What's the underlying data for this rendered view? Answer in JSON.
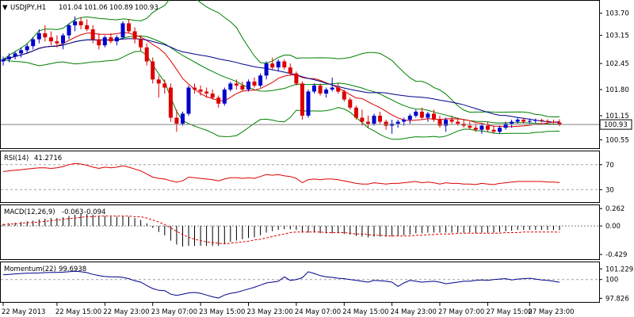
{
  "chart_data": [
    {
      "type": "candlestick",
      "panel": "price",
      "title": "USDJPY,H1",
      "ohlc_readout": [
        "101.04",
        "101.06",
        "100.89",
        "100.93"
      ],
      "current_price": 100.93,
      "ylim": [
        100.4,
        103.95
      ],
      "y_ticks": [
        "103.70",
        "103.15",
        "102.45",
        "101.80",
        "101.15",
        "100.55"
      ],
      "y_tick_values": [
        103.7,
        103.15,
        102.45,
        101.8,
        101.15,
        100.55
      ],
      "indicators": [
        "SMA (red)",
        "SMA (blue)",
        "Bollinger Bands (green)"
      ],
      "up_color": "#0000cc",
      "down_color": "#dd0000",
      "candles": [
        [
          102.5,
          102.62,
          102.4,
          102.55
        ],
        [
          102.55,
          102.7,
          102.48,
          102.62
        ],
        [
          102.62,
          102.75,
          102.55,
          102.7
        ],
        [
          102.7,
          102.85,
          102.6,
          102.78
        ],
        [
          102.78,
          102.95,
          102.7,
          102.88
        ],
        [
          102.88,
          103.1,
          102.8,
          103.05
        ],
        [
          103.05,
          103.3,
          102.95,
          103.2
        ],
        [
          103.2,
          103.4,
          103.0,
          103.1
        ],
        [
          103.1,
          103.25,
          102.9,
          103.0
        ],
        [
          103.0,
          103.15,
          102.85,
          102.95
        ],
        [
          102.95,
          103.2,
          102.8,
          103.15
        ],
        [
          103.15,
          103.45,
          103.05,
          103.4
        ],
        [
          103.4,
          103.62,
          103.25,
          103.5
        ],
        [
          103.5,
          103.6,
          103.3,
          103.4
        ],
        [
          103.4,
          103.55,
          103.25,
          103.3
        ],
        [
          103.3,
          103.4,
          102.95,
          103.05
        ],
        [
          103.05,
          103.2,
          102.8,
          102.9
        ],
        [
          102.9,
          103.15,
          102.85,
          103.1
        ],
        [
          103.1,
          103.2,
          102.95,
          103.0
        ],
        [
          103.0,
          103.15,
          102.9,
          103.1
        ],
        [
          103.1,
          103.5,
          103.05,
          103.45
        ],
        [
          103.45,
          103.55,
          103.2,
          103.25
        ],
        [
          103.25,
          103.35,
          102.95,
          103.05
        ],
        [
          103.05,
          103.15,
          102.75,
          102.85
        ],
        [
          102.85,
          102.95,
          102.4,
          102.5
        ],
        [
          102.5,
          102.6,
          101.95,
          102.05
        ],
        [
          102.05,
          102.15,
          101.6,
          101.95
        ],
        [
          101.95,
          102.05,
          101.7,
          101.85
        ],
        [
          101.85,
          101.95,
          101.0,
          101.1
        ],
        [
          101.1,
          101.3,
          100.75,
          100.95
        ],
        [
          100.95,
          101.25,
          100.9,
          101.2
        ],
        [
          101.2,
          101.9,
          101.15,
          101.85
        ],
        [
          101.85,
          101.95,
          101.7,
          101.8
        ],
        [
          101.8,
          101.9,
          101.65,
          101.75
        ],
        [
          101.75,
          101.85,
          101.6,
          101.7
        ],
        [
          101.7,
          101.8,
          101.55,
          101.6
        ],
        [
          101.6,
          101.65,
          101.35,
          101.45
        ],
        [
          101.45,
          101.85,
          101.4,
          101.8
        ],
        [
          101.8,
          102.0,
          101.75,
          101.95
        ],
        [
          101.95,
          102.05,
          101.8,
          101.9
        ],
        [
          101.9,
          102.0,
          101.75,
          101.8
        ],
        [
          101.8,
          102.05,
          101.75,
          102.0
        ],
        [
          102.0,
          102.1,
          101.85,
          101.9
        ],
        [
          101.9,
          102.2,
          101.85,
          102.15
        ],
        [
          102.15,
          102.5,
          102.05,
          102.45
        ],
        [
          102.45,
          102.6,
          102.3,
          102.35
        ],
        [
          102.35,
          102.55,
          102.25,
          102.5
        ],
        [
          102.5,
          102.55,
          102.3,
          102.35
        ],
        [
          102.35,
          102.45,
          102.15,
          102.2
        ],
        [
          102.2,
          102.25,
          101.9,
          101.95
        ],
        [
          101.95,
          102.0,
          101.05,
          101.15
        ],
        [
          101.15,
          101.8,
          101.1,
          101.75
        ],
        [
          101.75,
          101.95,
          101.7,
          101.9
        ],
        [
          101.9,
          101.95,
          101.65,
          101.7
        ],
        [
          101.7,
          101.85,
          101.6,
          101.8
        ],
        [
          101.8,
          102.1,
          101.75,
          101.85
        ],
        [
          101.85,
          101.95,
          101.7,
          101.75
        ],
        [
          101.75,
          101.8,
          101.5,
          101.55
        ],
        [
          101.55,
          101.6,
          101.3,
          101.35
        ],
        [
          101.35,
          101.4,
          101.05,
          101.1
        ],
        [
          101.1,
          101.3,
          100.9,
          101.0
        ],
        [
          101.0,
          101.15,
          100.85,
          100.95
        ],
        [
          100.95,
          101.2,
          100.9,
          101.15
        ],
        [
          101.15,
          101.25,
          100.95,
          101.0
        ],
        [
          101.0,
          101.05,
          100.8,
          100.9
        ],
        [
          100.9,
          101.05,
          100.7,
          100.95
        ],
        [
          100.95,
          101.05,
          100.85,
          101.0
        ],
        [
          101.0,
          101.1,
          100.9,
          101.05
        ],
        [
          101.05,
          101.2,
          100.95,
          101.15
        ],
        [
          101.15,
          101.3,
          101.1,
          101.25
        ],
        [
          101.25,
          101.35,
          101.05,
          101.1
        ],
        [
          101.1,
          101.25,
          101.0,
          101.2
        ],
        [
          101.2,
          101.3,
          101.0,
          101.05
        ],
        [
          101.05,
          101.15,
          100.85,
          100.9
        ],
        [
          100.9,
          101.1,
          100.75,
          101.05
        ],
        [
          101.05,
          101.15,
          100.95,
          101.0
        ],
        [
          101.0,
          101.1,
          100.9,
          100.95
        ],
        [
          100.95,
          101.05,
          100.85,
          100.9
        ],
        [
          100.9,
          101.0,
          100.8,
          100.85
        ],
        [
          100.85,
          100.95,
          100.75,
          100.8
        ],
        [
          100.8,
          100.95,
          100.7,
          100.9
        ],
        [
          100.9,
          101.0,
          100.75,
          100.8
        ],
        [
          100.8,
          100.9,
          100.7,
          100.75
        ],
        [
          100.75,
          100.9,
          100.7,
          100.85
        ],
        [
          100.85,
          101.0,
          100.8,
          100.95
        ],
        [
          100.95,
          101.05,
          100.85,
          101.0
        ],
        [
          101.0,
          101.1,
          100.95,
          101.05
        ],
        [
          101.05,
          101.1,
          100.95,
          101.0
        ],
        [
          101.0,
          101.08,
          100.95,
          101.02
        ],
        [
          101.02,
          101.08,
          100.97,
          101.04
        ],
        [
          101.04,
          101.07,
          100.98,
          101.02
        ],
        [
          101.02,
          101.06,
          100.95,
          101.0
        ],
        [
          101.0,
          101.05,
          100.92,
          100.98
        ],
        [
          100.98,
          101.06,
          100.89,
          100.93
        ]
      ]
    },
    {
      "type": "line",
      "panel": "rsi",
      "label": "RSI(14)",
      "last_value": "41.2716",
      "ylim": [
        10,
        90
      ],
      "y_ticks": [
        "70",
        "30"
      ],
      "levels": [
        70,
        30
      ],
      "color": "#dd0000",
      "values": [
        59,
        60,
        61,
        62,
        63,
        64,
        65,
        65,
        64,
        65,
        67,
        70,
        72,
        71,
        69,
        66,
        64,
        66,
        65,
        66,
        68,
        66,
        63,
        60,
        55,
        50,
        48,
        47,
        44,
        42,
        44,
        50,
        49,
        48,
        47,
        46,
        44,
        47,
        49,
        49,
        48,
        49,
        48,
        51,
        54,
        53,
        54,
        52,
        51,
        48,
        41,
        46,
        47,
        46,
        47,
        47,
        46,
        44,
        42,
        40,
        39,
        39,
        41,
        40,
        39,
        40,
        40,
        41,
        42,
        43,
        41,
        42,
        41,
        39,
        41,
        40,
        40,
        39,
        39,
        38,
        40,
        39,
        38,
        40,
        41,
        42,
        43,
        43,
        43,
        43,
        43,
        42,
        42,
        41.3
      ]
    },
    {
      "type": "line+histogram",
      "panel": "macd",
      "label": "MACD(12,26,9)",
      "readout": [
        "-0.063",
        "-0.094"
      ],
      "ylim": [
        -0.5,
        0.3
      ],
      "y_ticks": [
        "0.262",
        "0.00",
        "-0.429"
      ],
      "y_tick_values": [
        0.262,
        0.0,
        -0.429
      ],
      "histogram_color": "#000000",
      "signal_color": "#dd0000",
      "histogram": [
        0.03,
        0.04,
        0.05,
        0.06,
        0.07,
        0.08,
        0.1,
        0.11,
        0.12,
        0.12,
        0.13,
        0.15,
        0.17,
        0.18,
        0.18,
        0.17,
        0.15,
        0.15,
        0.14,
        0.14,
        0.15,
        0.14,
        0.12,
        0.09,
        0.04,
        -0.03,
        -0.09,
        -0.14,
        -0.22,
        -0.28,
        -0.31,
        -0.3,
        -0.3,
        -0.3,
        -0.3,
        -0.3,
        -0.3,
        -0.27,
        -0.24,
        -0.22,
        -0.2,
        -0.18,
        -0.17,
        -0.14,
        -0.1,
        -0.08,
        -0.06,
        -0.05,
        -0.05,
        -0.06,
        -0.1,
        -0.1,
        -0.1,
        -0.11,
        -0.11,
        -0.11,
        -0.11,
        -0.12,
        -0.13,
        -0.15,
        -0.16,
        -0.17,
        -0.16,
        -0.16,
        -0.16,
        -0.16,
        -0.15,
        -0.14,
        -0.13,
        -0.11,
        -0.11,
        -0.1,
        -0.1,
        -0.1,
        -0.1,
        -0.1,
        -0.1,
        -0.1,
        -0.1,
        -0.11,
        -0.1,
        -0.1,
        -0.1,
        -0.09,
        -0.08,
        -0.07,
        -0.06,
        -0.06,
        -0.06,
        -0.06,
        -0.06,
        -0.06,
        -0.06,
        -0.063
      ],
      "signal": [
        0.02,
        0.03,
        0.03,
        0.04,
        0.05,
        0.05,
        0.06,
        0.07,
        0.08,
        0.09,
        0.1,
        0.11,
        0.12,
        0.13,
        0.14,
        0.14,
        0.15,
        0.15,
        0.15,
        0.15,
        0.15,
        0.15,
        0.14,
        0.14,
        0.12,
        0.09,
        0.06,
        0.02,
        -0.03,
        -0.08,
        -0.13,
        -0.17,
        -0.2,
        -0.22,
        -0.24,
        -0.25,
        -0.26,
        -0.27,
        -0.26,
        -0.25,
        -0.24,
        -0.23,
        -0.21,
        -0.2,
        -0.18,
        -0.16,
        -0.14,
        -0.12,
        -0.1,
        -0.09,
        -0.09,
        -0.09,
        -0.09,
        -0.09,
        -0.1,
        -0.1,
        -0.1,
        -0.1,
        -0.11,
        -0.12,
        -0.12,
        -0.13,
        -0.14,
        -0.14,
        -0.15,
        -0.15,
        -0.15,
        -0.15,
        -0.15,
        -0.14,
        -0.14,
        -0.13,
        -0.13,
        -0.12,
        -0.12,
        -0.12,
        -0.11,
        -0.11,
        -0.11,
        -0.11,
        -0.11,
        -0.11,
        -0.11,
        -0.11,
        -0.1,
        -0.1,
        -0.1,
        -0.09,
        -0.09,
        -0.09,
        -0.09,
        -0.09,
        -0.09,
        -0.094
      ]
    },
    {
      "type": "line",
      "panel": "momentum",
      "label": "Momentum(22)",
      "last_value": "99.6938",
      "ylim": [
        97.4,
        101.9
      ],
      "y_ticks": [
        "101.2291",
        "100",
        "97.826"
      ],
      "y_tick_values": [
        101.2291,
        100.0,
        97.826
      ],
      "level": 100,
      "color": "#00008b",
      "values": [
        100.55,
        100.6,
        100.65,
        100.7,
        100.72,
        100.74,
        100.76,
        100.8,
        100.82,
        100.82,
        100.85,
        100.9,
        100.95,
        100.9,
        100.8,
        100.6,
        100.45,
        100.35,
        100.3,
        100.3,
        100.25,
        100.1,
        99.85,
        99.7,
        99.3,
        98.95,
        98.75,
        98.7,
        98.3,
        98.15,
        98.3,
        98.45,
        98.5,
        98.4,
        98.2,
        98.0,
        97.85,
        98.2,
        98.4,
        98.5,
        98.7,
        98.9,
        99.1,
        99.35,
        99.6,
        99.7,
        99.8,
        100.3,
        99.9,
        100.0,
        100.2,
        100.9,
        100.7,
        100.45,
        100.3,
        100.25,
        100.15,
        100.1,
        100.0,
        99.9,
        99.8,
        99.7,
        99.9,
        99.85,
        99.8,
        99.7,
        99.2,
        99.6,
        99.9,
        99.8,
        99.7,
        99.75,
        99.8,
        99.7,
        99.5,
        99.6,
        99.7,
        99.8,
        99.8,
        99.9,
        99.95,
        99.9,
        100.0,
        100.05,
        100.1,
        99.95,
        100.05,
        100.1,
        100.15,
        100.05,
        99.95,
        99.9,
        99.8,
        99.69
      ]
    }
  ],
  "x_axis": {
    "labels": [
      "22 May 2013",
      "22 May 15:00",
      "22 May 23:00",
      "23 May 07:00",
      "23 May 15:00",
      "23 May 23:00",
      "24 May 07:00",
      "24 May 15:00",
      "24 May 23:00",
      "27 May 07:00",
      "27 May 15:00",
      "27 May 23:00"
    ],
    "label_bar_index": [
      0,
      9,
      17,
      25,
      33,
      41,
      49,
      57,
      65,
      73,
      81,
      88
    ]
  }
}
